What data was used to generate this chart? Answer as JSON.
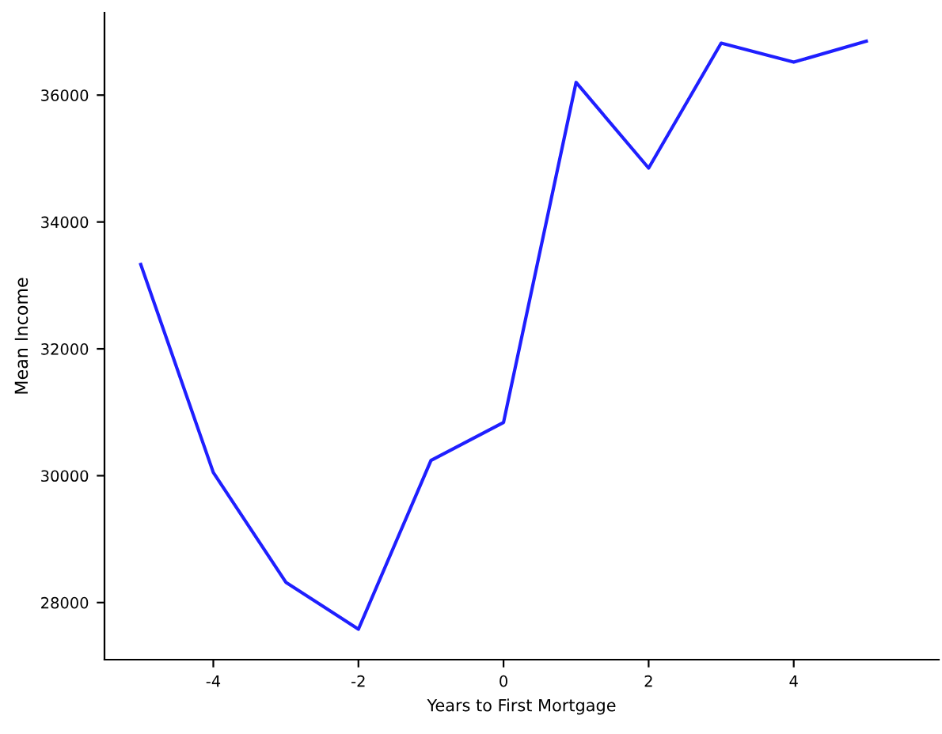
{
  "chart_data": {
    "type": "line",
    "xlabel": "Years to First Mortgage",
    "ylabel": "Mean Income",
    "x": [
      -5,
      -4,
      -3,
      -2,
      -1,
      0,
      1,
      2,
      3,
      4,
      5
    ],
    "series": [
      {
        "color": "#1f1fff",
        "values": [
          33330,
          30050,
          28320,
          27580,
          30240,
          30840,
          36200,
          34850,
          36820,
          36520,
          36850
        ]
      }
    ],
    "xlim": [
      -5.5,
      6.0
    ],
    "ylim": [
      27100,
      37300
    ],
    "xticks": [
      -4,
      -2,
      0,
      2,
      4
    ],
    "yticks": [
      28000,
      30000,
      32000,
      34000,
      36000
    ],
    "grid": false
  }
}
